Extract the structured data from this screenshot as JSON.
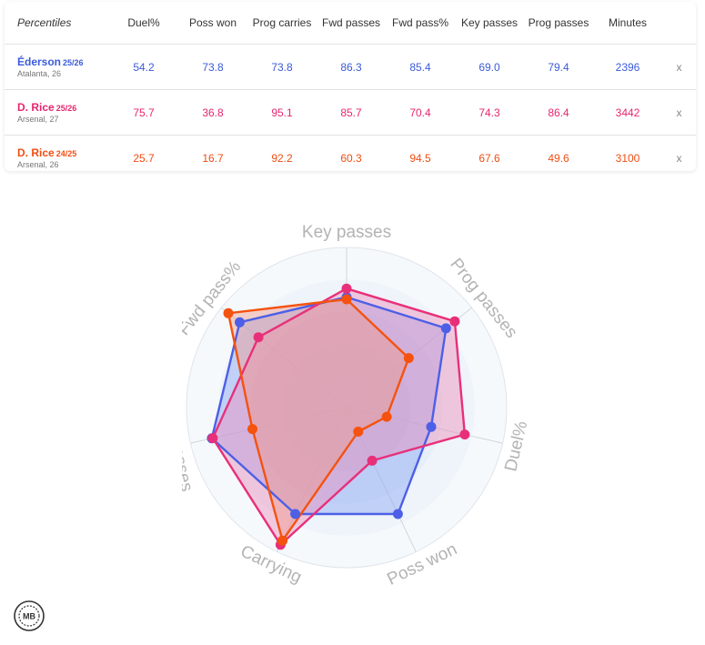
{
  "table": {
    "header_label": "Percentiles",
    "columns": [
      {
        "label": "Duel%"
      },
      {
        "label": "Poss won"
      },
      {
        "label": "Prog carries"
      },
      {
        "label": "Fwd passes"
      },
      {
        "label": "Fwd pass%"
      },
      {
        "label": "Key passes"
      },
      {
        "label": "Prog passes"
      },
      {
        "label": "Minutes"
      }
    ],
    "remove_label": "x",
    "rows": [
      {
        "name": "Éderson",
        "season": "25/26",
        "club": "Atalanta, 26",
        "color": "#3b5bdb",
        "values": [
          "54.2",
          "73.8",
          "73.8",
          "86.3",
          "85.4",
          "69.0",
          "79.4",
          "2396"
        ]
      },
      {
        "name": "D. Rice",
        "season": "25/26",
        "club": "Arsenal, 27",
        "color": "#e6266e",
        "values": [
          "75.7",
          "36.8",
          "95.1",
          "85.7",
          "70.4",
          "74.3",
          "86.4",
          "3442"
        ]
      },
      {
        "name": "D. Rice",
        "season": "24/25",
        "club": "Arsenal, 26",
        "color": "#f04e12",
        "values": [
          "25.7",
          "16.7",
          "92.2",
          "60.3",
          "94.5",
          "67.6",
          "49.6",
          "3100"
        ]
      }
    ]
  },
  "chart_data": {
    "type": "radar",
    "axes": [
      "Key passes",
      "Prog passes",
      "Duel%",
      "Poss won",
      "Carrying",
      "Fwd passes",
      "Fwd pass%"
    ],
    "range": [
      0,
      100
    ],
    "series": [
      {
        "name": "Éderson 25/26",
        "color": "#4d5fe6",
        "fill": "#8aa3f5",
        "values": [
          69.0,
          79.4,
          54.2,
          73.8,
          73.8,
          86.3,
          85.4
        ]
      },
      {
        "name": "D. Rice 25/26",
        "color": "#e8307a",
        "fill": "#ec8dbb",
        "values": [
          74.3,
          86.4,
          75.7,
          36.8,
          95.1,
          85.7,
          70.4
        ]
      },
      {
        "name": "D. Rice 24/25",
        "color": "#f5520f",
        "fill": "#ef9a8c",
        "values": [
          67.6,
          49.6,
          25.7,
          16.7,
          92.2,
          60.3,
          94.5
        ]
      }
    ]
  },
  "logo": {
    "text": "MB"
  }
}
